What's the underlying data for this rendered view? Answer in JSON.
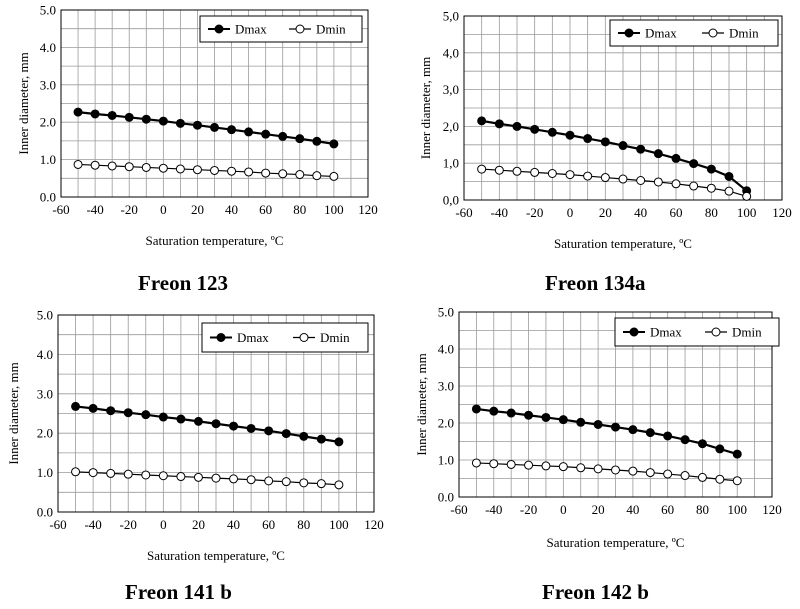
{
  "chart_data": [
    {
      "type": "line",
      "caption": "Freon 123",
      "xlabel": "Saturation temperature, ºC",
      "ylabel": "Inner diameter, mm",
      "x": [
        -50,
        -40,
        -30,
        -20,
        -10,
        0,
        10,
        20,
        30,
        40,
        50,
        60,
        70,
        80,
        90,
        100
      ],
      "xlim": [
        -60,
        120
      ],
      "ylim": [
        0,
        5
      ],
      "x_ticks": [
        "-60",
        "-40",
        "-20",
        "0",
        "20",
        "40",
        "60",
        "80",
        "100",
        "120"
      ],
      "y_ticks": [
        "0.0",
        "1.0",
        "2.0",
        "3.0",
        "4.0",
        "5.0"
      ],
      "grid": true,
      "legend_position": "top-right",
      "series": [
        {
          "name": "Dmax",
          "marker": "filled-circle",
          "values": [
            2.27,
            2.22,
            2.18,
            2.13,
            2.08,
            2.03,
            1.97,
            1.92,
            1.86,
            1.8,
            1.74,
            1.68,
            1.62,
            1.56,
            1.49,
            1.42
          ]
        },
        {
          "name": "Dmin",
          "marker": "open-circle",
          "values": [
            0.87,
            0.85,
            0.83,
            0.81,
            0.79,
            0.77,
            0.75,
            0.73,
            0.71,
            0.69,
            0.67,
            0.64,
            0.62,
            0.6,
            0.57,
            0.55
          ]
        }
      ]
    },
    {
      "type": "line",
      "caption": "Freon 134a",
      "xlabel": "Saturation temperature, ºC",
      "ylabel": "Inner diameter, mm",
      "x": [
        -50,
        -40,
        -30,
        -20,
        -10,
        0,
        10,
        20,
        30,
        40,
        50,
        60,
        70,
        80,
        90,
        100
      ],
      "xlim": [
        -60,
        120
      ],
      "ylim": [
        0,
        5
      ],
      "x_ticks": [
        "-60",
        "-40",
        "-20",
        "0",
        "20",
        "40",
        "60",
        "80",
        "100",
        "120"
      ],
      "y_ticks": [
        "0,0",
        "1,0",
        "2,0",
        "3,0",
        "4,0",
        "5,0"
      ],
      "grid": true,
      "legend_position": "top-right",
      "series": [
        {
          "name": "Dmax",
          "marker": "filled-circle",
          "values": [
            2.15,
            2.07,
            2.0,
            1.92,
            1.84,
            1.76,
            1.67,
            1.58,
            1.48,
            1.38,
            1.26,
            1.13,
            0.99,
            0.84,
            0.64,
            0.25
          ]
        },
        {
          "name": "Dmin",
          "marker": "open-circle",
          "values": [
            0.84,
            0.81,
            0.78,
            0.75,
            0.72,
            0.69,
            0.65,
            0.61,
            0.57,
            0.53,
            0.49,
            0.44,
            0.38,
            0.32,
            0.24,
            0.1
          ]
        }
      ]
    },
    {
      "type": "line",
      "caption": "Freon 141 b",
      "xlabel": "Saturation temperature, ºC",
      "ylabel": "Inner diameter, mm",
      "x": [
        -50,
        -40,
        -30,
        -20,
        -10,
        0,
        10,
        20,
        30,
        40,
        50,
        60,
        70,
        80,
        90,
        100
      ],
      "xlim": [
        -60,
        120
      ],
      "ylim": [
        0,
        5
      ],
      "x_ticks": [
        "-60",
        "-40",
        "-20",
        "0",
        "20",
        "40",
        "60",
        "80",
        "100",
        "120"
      ],
      "y_ticks": [
        "0.0",
        "1.0",
        "2.0",
        "3.0",
        "4.0",
        "5.0"
      ],
      "grid": true,
      "legend_position": "top-right",
      "series": [
        {
          "name": "Dmax",
          "marker": "filled-circle",
          "values": [
            2.68,
            2.63,
            2.57,
            2.52,
            2.47,
            2.41,
            2.36,
            2.3,
            2.24,
            2.18,
            2.12,
            2.06,
            1.99,
            1.92,
            1.85,
            1.78
          ]
        },
        {
          "name": "Dmin",
          "marker": "open-circle",
          "values": [
            1.02,
            1.0,
            0.98,
            0.96,
            0.94,
            0.92,
            0.9,
            0.88,
            0.86,
            0.84,
            0.82,
            0.79,
            0.77,
            0.74,
            0.72,
            0.69
          ]
        }
      ]
    },
    {
      "type": "line",
      "caption": "Freon 142 b",
      "xlabel": "Saturation temperature, ºC",
      "ylabel": "Inner diameter, mm",
      "x": [
        -50,
        -40,
        -30,
        -20,
        -10,
        0,
        10,
        20,
        30,
        40,
        50,
        60,
        70,
        80,
        90,
        100
      ],
      "xlim": [
        -60,
        120
      ],
      "ylim": [
        0,
        5
      ],
      "x_ticks": [
        "-60",
        "-40",
        "-20",
        "0",
        "20",
        "40",
        "60",
        "80",
        "100",
        "120"
      ],
      "y_ticks": [
        "0.0",
        "1.0",
        "2.0",
        "3.0",
        "4.0",
        "5.0"
      ],
      "grid": true,
      "legend_position": "top-right",
      "series": [
        {
          "name": "Dmax",
          "marker": "filled-circle",
          "values": [
            2.38,
            2.32,
            2.27,
            2.21,
            2.15,
            2.09,
            2.02,
            1.96,
            1.89,
            1.82,
            1.74,
            1.65,
            1.55,
            1.44,
            1.3,
            1.16
          ]
        },
        {
          "name": "Dmin",
          "marker": "open-circle",
          "values": [
            0.92,
            0.9,
            0.88,
            0.86,
            0.84,
            0.82,
            0.79,
            0.76,
            0.73,
            0.7,
            0.66,
            0.62,
            0.58,
            0.53,
            0.48,
            0.44
          ]
        }
      ]
    }
  ]
}
